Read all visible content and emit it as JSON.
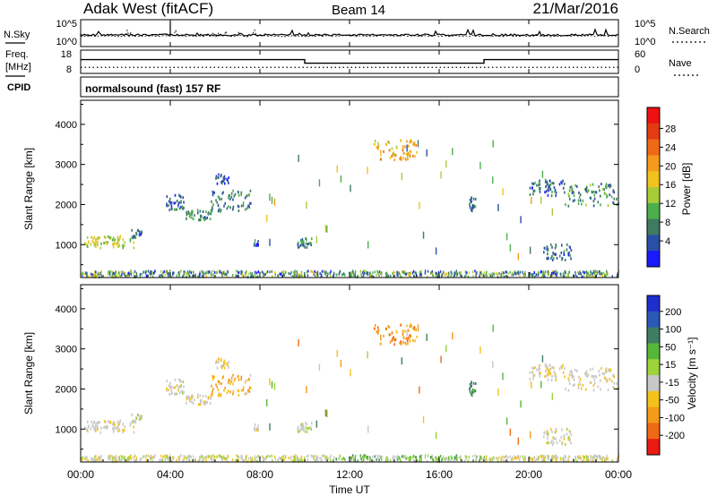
{
  "header": {
    "radar_title": "Adak West (fitACF)",
    "beam_label": "Beam 14",
    "date_label": "21/Mar/2016"
  },
  "noise_panel": {
    "left_label": "N.Sky",
    "right_label": "N.Search",
    "left_ticks": [
      "10^5",
      "10^0"
    ],
    "right_ticks": [
      "10^5",
      "10^0"
    ]
  },
  "freq_panel": {
    "left_label_line1": "Freq.",
    "left_label_line2": "[MHz]",
    "right_label": "Nave",
    "left_ticks": [
      "18",
      "8"
    ],
    "right_ticks": [
      "60",
      "0"
    ],
    "freq_segments": [
      {
        "start_hour": 0,
        "end_hour": 10,
        "mhz": 14.1
      },
      {
        "start_hour": 10,
        "end_hour": 18,
        "mhz": 12.3
      },
      {
        "start_hour": 18,
        "end_hour": 24,
        "mhz": 14.1
      }
    ],
    "nave_level": 13
  },
  "cpid_panel": {
    "left_label": "CPID",
    "program_label": "normalsound (fast) 157 RF"
  },
  "x_axis": {
    "title": "Time UT",
    "ticks": [
      "00:00",
      "04:00",
      "08:00",
      "12:00",
      "16:00",
      "20:00",
      "00:00"
    ]
  },
  "power_panel": {
    "ylabel": "Slant Range [km]",
    "yticks": [
      "1000",
      "2000",
      "3000",
      "4000"
    ],
    "colorbar_label": "Power [dB]",
    "colorbar_ticks": [
      "4",
      "8",
      "12",
      "16",
      "20",
      "24",
      "28"
    ],
    "colorbar_colors": [
      "#1a1aff",
      "#2a4fa8",
      "#3f7a62",
      "#4caf4c",
      "#a8cc38",
      "#f2c21c",
      "#f59a1a",
      "#f06a16",
      "#e53b13",
      "#ee1111"
    ]
  },
  "velocity_panel": {
    "ylabel": "Slant Range [km]",
    "yticks": [
      "1000",
      "2000",
      "3000",
      "4000"
    ],
    "colorbar_label": "Velocity [m s⁻¹]",
    "colorbar_ticks": [
      "200",
      "100",
      "50",
      "15",
      "-15",
      "-50",
      "-100",
      "-200"
    ],
    "colorbar_colors": [
      "#1f2ecc",
      "#2a59b8",
      "#3f7d63",
      "#56b839",
      "#9cd43a",
      "#c8c8c8",
      "#f5c21b",
      "#f59b1a",
      "#ef6a15",
      "#ea1a12"
    ]
  },
  "chart_data": {
    "type": "heatmap",
    "x_label": "Time UT",
    "x_range_hours": [
      0,
      24
    ],
    "y_label": "Slant Range [km]",
    "y_range_km": [
      180,
      4600
    ],
    "gs_band_km": [
      180,
      330
    ],
    "echo_regions": [
      {
        "t_start": 0.05,
        "t_end": 2.4,
        "r_start": 900,
        "r_end": 1200,
        "power": 14,
        "velocity": -5
      },
      {
        "t_start": 2.2,
        "t_end": 2.7,
        "r_start": 1150,
        "r_end": 1350,
        "power": 6,
        "velocity": 10
      },
      {
        "t_start": 3.8,
        "t_end": 4.6,
        "r_start": 1850,
        "r_end": 2250,
        "power": 6,
        "velocity": 0
      },
      {
        "t_start": 4.6,
        "t_end": 5.8,
        "r_start": 1600,
        "r_end": 1850,
        "power": 8,
        "velocity": -10
      },
      {
        "t_start": 5.8,
        "t_end": 7.6,
        "r_start": 1800,
        "r_end": 2350,
        "power": 7,
        "velocity": -30
      },
      {
        "t_start": 6.0,
        "t_end": 6.6,
        "r_start": 2500,
        "r_end": 2750,
        "power": 5,
        "velocity": -20
      },
      {
        "t_start": 9.6,
        "t_end": 10.3,
        "r_start": 900,
        "r_end": 1150,
        "power": 7,
        "velocity": 10
      },
      {
        "t_start": 7.7,
        "t_end": 7.9,
        "r_start": 950,
        "r_end": 1100,
        "power": 6,
        "velocity": 0
      },
      {
        "t_start": 13.0,
        "t_end": 15.0,
        "r_start": 3100,
        "r_end": 3600,
        "power": 18,
        "velocity": -40
      },
      {
        "t_start": 17.3,
        "t_end": 17.6,
        "r_start": 1800,
        "r_end": 2200,
        "power": 6,
        "velocity": 60
      },
      {
        "t_start": 20.6,
        "t_end": 21.9,
        "r_start": 600,
        "r_end": 1000,
        "power": 6,
        "velocity": 0
      },
      {
        "t_start": 20.0,
        "t_end": 21.6,
        "r_start": 2200,
        "r_end": 2600,
        "power": 6,
        "velocity": -10
      },
      {
        "t_start": 21.6,
        "t_end": 24.0,
        "r_start": 1950,
        "r_end": 2500,
        "power": 9,
        "velocity": -5
      }
    ]
  }
}
